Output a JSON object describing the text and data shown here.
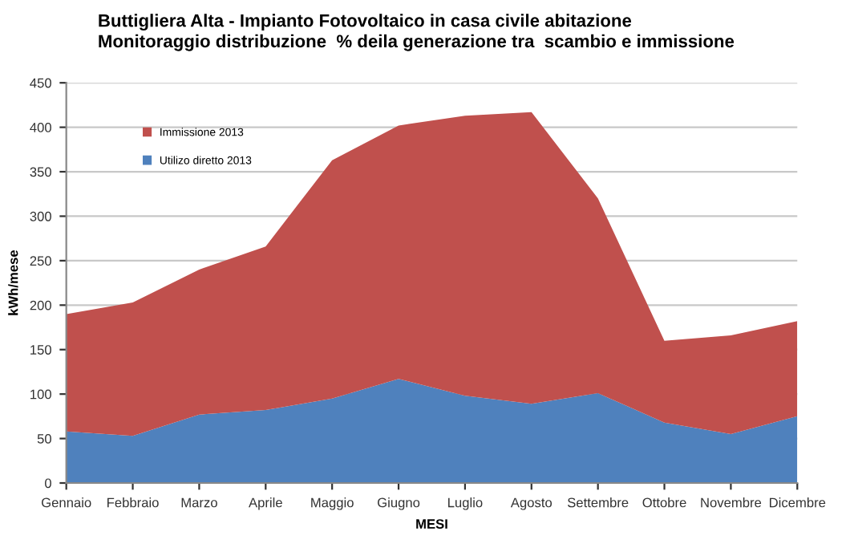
{
  "chart_data": {
    "type": "area",
    "stacked": true,
    "title": "Buttigliera Alta - Impianto Fotovoltaico in casa civile abitazione\nMonitoraggio distribuzione  % deila generazione tra  scambio e immissione",
    "xlabel": "MESI",
    "ylabel": "kWh/mese",
    "categories": [
      "Gennaio",
      "Febbraio",
      "Marzo",
      "Aprile",
      "Maggio",
      "Giugno",
      "Luglio",
      "Agosto",
      "Settembre",
      "Ottobre",
      "Novembre",
      "Dicembre"
    ],
    "series": [
      {
        "name": "Utilizo diretto 2013",
        "color": "#4f81bd",
        "values": [
          58,
          53,
          77,
          82,
          95,
          117,
          98,
          89,
          101,
          68,
          55,
          75
        ]
      },
      {
        "name": "Immissione 2013",
        "color": "#c0504d",
        "values": [
          132,
          150,
          163,
          184,
          268,
          285,
          315,
          328,
          219,
          92,
          111,
          107
        ]
      }
    ],
    "ylim": [
      0,
      450
    ],
    "yticks": [
      0,
      50,
      100,
      150,
      200,
      250,
      300,
      350,
      400,
      450
    ],
    "grid": "y",
    "legend": "top left"
  }
}
